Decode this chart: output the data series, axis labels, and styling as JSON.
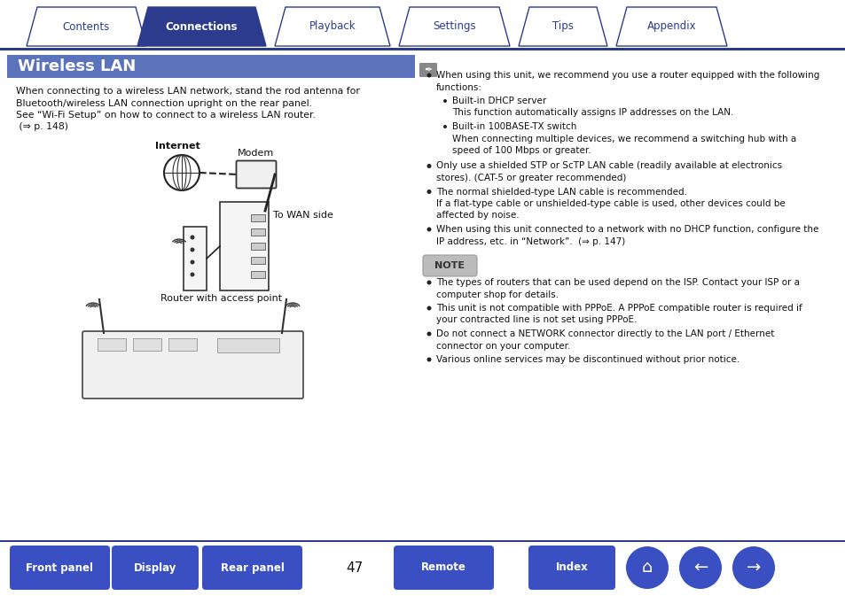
{
  "bg_color": "#ffffff",
  "page_width": 9.54,
  "page_height": 6.73,
  "tab_items": [
    "Contents",
    "Connections",
    "Playback",
    "Settings",
    "Tips",
    "Appendix"
  ],
  "tab_active": 1,
  "tab_color_active": "#2d3b8e",
  "tab_color_inactive": "#ffffff",
  "tab_text_color_active": "#ffffff",
  "tab_text_color_inactive": "#2d3b8e",
  "tab_border_color": "#2d3b8e",
  "tab_line_color": "#2d3b8e",
  "section_title": "Wireless LAN",
  "section_title_bg": "#5b73bb",
  "section_title_color": "#ffffff",
  "note_label": "NOTE",
  "note_label_bg": "#bbbbbb",
  "bottom_buttons": [
    "Front panel",
    "Display",
    "Rear panel",
    "Remote",
    "Index"
  ],
  "bottom_button_color": "#3a4fc1",
  "bottom_button_text_color": "#ffffff",
  "page_number": "47",
  "divider_color": "#2d3b8e",
  "diagram_labels": {
    "internet": "Internet",
    "modem": "Modem",
    "to_wan": "To WAN side",
    "router": "Router with access point"
  }
}
